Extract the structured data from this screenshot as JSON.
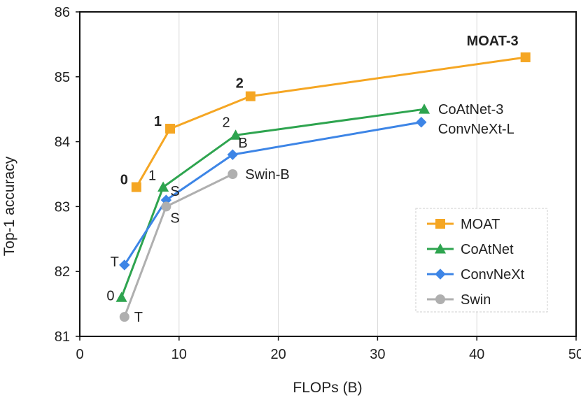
{
  "chart_data": {
    "type": "line",
    "title": "",
    "xlabel": "FLOPs (B)",
    "ylabel": "Top-1 accuracy",
    "xlim": [
      0,
      50
    ],
    "ylim": [
      81,
      86
    ],
    "xticks": [
      0,
      10,
      20,
      30,
      40,
      50
    ],
    "yticks": [
      81,
      82,
      83,
      84,
      85,
      86
    ],
    "grid": "vertical",
    "legend_position": "bottom-right",
    "series": [
      {
        "name": "MOAT",
        "color": "#F5A623",
        "marker": "square",
        "x": [
          5.7,
          9.1,
          17.2,
          44.9
        ],
        "y": [
          83.3,
          84.2,
          84.7,
          85.3
        ],
        "labels": [
          "0",
          "1",
          "2",
          "MOAT-3"
        ],
        "label_bold": true
      },
      {
        "name": "CoAtNet",
        "color": "#2EA44F",
        "marker": "triangle",
        "x": [
          4.2,
          8.4,
          15.7,
          34.7
        ],
        "y": [
          81.6,
          83.3,
          84.1,
          84.5
        ],
        "labels": [
          "0",
          "1",
          "2",
          "CoAtNet-3"
        ],
        "label_bold": false
      },
      {
        "name": "ConvNeXt",
        "color": "#3D85E6",
        "marker": "diamond",
        "x": [
          4.5,
          8.7,
          15.4,
          34.4
        ],
        "y": [
          82.1,
          83.1,
          83.8,
          84.3
        ],
        "labels": [
          "T",
          "S",
          "B",
          "ConvNeXt-L"
        ],
        "label_bold": false
      },
      {
        "name": "Swin",
        "color": "#AFAFAF",
        "marker": "circle",
        "x": [
          4.5,
          8.7,
          15.4
        ],
        "y": [
          81.3,
          83.0,
          83.5
        ],
        "labels": [
          "T",
          "S",
          "Swin-B"
        ],
        "label_bold": false
      }
    ]
  }
}
